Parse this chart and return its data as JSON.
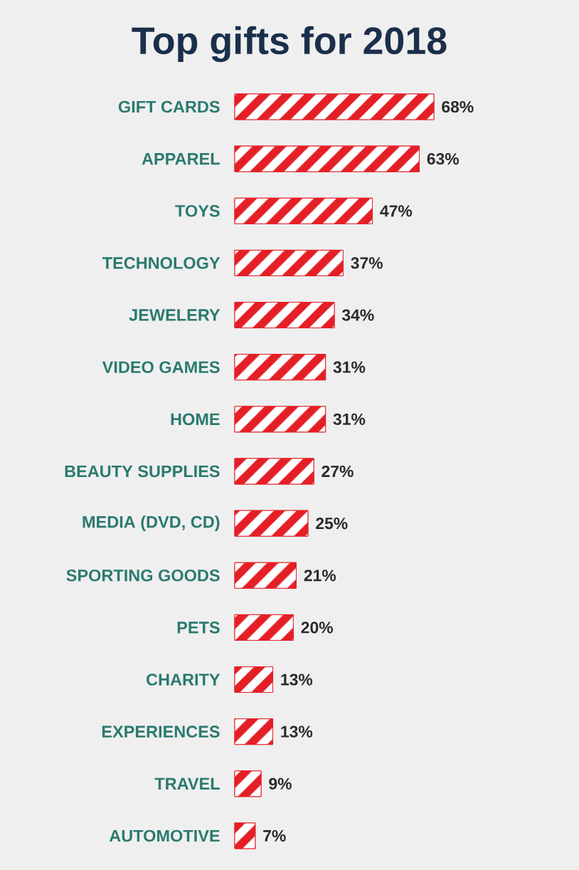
{
  "chart_data": {
    "type": "bar",
    "orientation": "horizontal",
    "title": "Top gifts for 2018",
    "categories": [
      "GIFT CARDS",
      "APPAREL",
      "TOYS",
      "TECHNOLOGY",
      "JEWELERY",
      "VIDEO GAMES",
      "HOME",
      "BEAUTY SUPPLIES",
      "MEDIA (DVD, CD)",
      "SPORTING GOODS",
      "PETS",
      "CHARITY",
      "EXPERIENCES",
      "TRAVEL",
      "AUTOMOTIVE"
    ],
    "values": [
      68,
      63,
      47,
      37,
      34,
      31,
      31,
      27,
      25,
      21,
      20,
      13,
      13,
      9,
      7
    ],
    "value_labels": [
      "68%",
      "63%",
      "47%",
      "37%",
      "34%",
      "31%",
      "31%",
      "27%",
      "25%",
      "21%",
      "20%",
      "13%",
      "13%",
      "9%",
      "7%"
    ],
    "color": "#e41f26",
    "tick_labels": "y"
  }
}
